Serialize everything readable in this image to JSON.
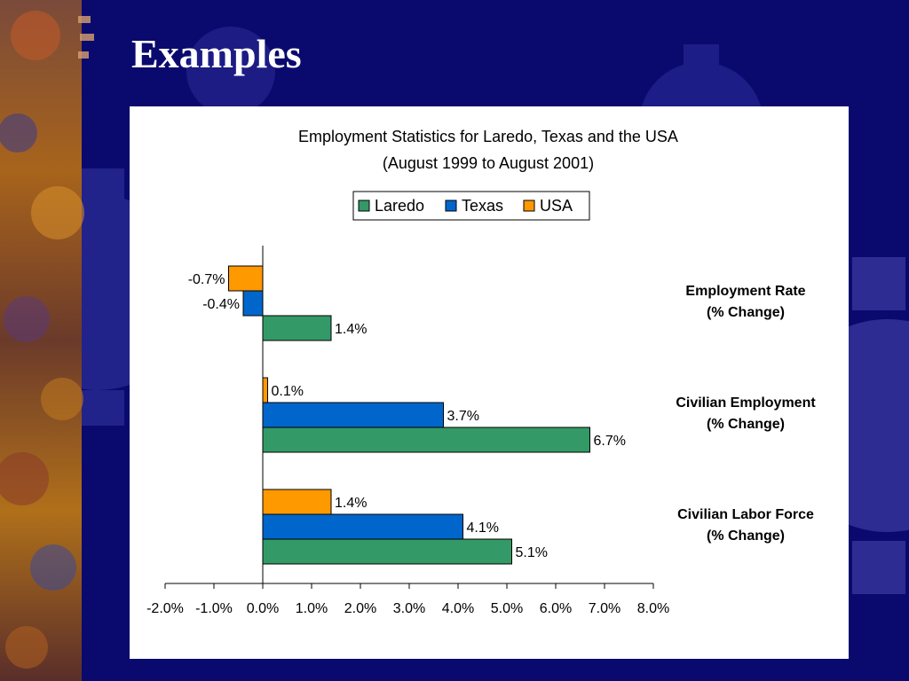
{
  "slide": {
    "title": "Examples"
  },
  "colors": {
    "background": "#0a0a6e",
    "laredo": "#339966",
    "texas": "#0066cc",
    "usa": "#ff9900"
  },
  "chart_data": {
    "type": "bar",
    "orientation": "horizontal",
    "title": "Employment Statistics for Laredo, Texas and the USA",
    "subtitle": "(August 1999 to August 2001)",
    "categories": [
      [
        "Employment Rate",
        "(% Change)"
      ],
      [
        "Civilian Employment",
        "(% Change)"
      ],
      [
        "Civilian Labor Force",
        "(% Change)"
      ]
    ],
    "series": [
      {
        "name": "Laredo",
        "color": "#339966",
        "values": [
          1.4,
          6.7,
          5.1
        ],
        "labels": [
          "1.4%",
          "6.7%",
          "5.1%"
        ]
      },
      {
        "name": "Texas",
        "color": "#0066cc",
        "values": [
          -0.4,
          3.7,
          4.1
        ],
        "labels": [
          "-0.4%",
          "3.7%",
          "4.1%"
        ]
      },
      {
        "name": "USA",
        "color": "#ff9900",
        "values": [
          -0.7,
          0.1,
          1.4
        ],
        "labels": [
          "-0.7%",
          "0.1%",
          "1.4%"
        ]
      }
    ],
    "xlim": [
      -2.0,
      8.0
    ],
    "xticks": [
      -2,
      -1,
      0,
      1,
      2,
      3,
      4,
      5,
      6,
      7,
      8
    ],
    "xtick_labels": [
      "-2.0%",
      "-1.0%",
      "0.0%",
      "1.0%",
      "2.0%",
      "3.0%",
      "4.0%",
      "5.0%",
      "6.0%",
      "7.0%",
      "8.0%"
    ],
    "legend_position": "top-center",
    "grid": false
  }
}
